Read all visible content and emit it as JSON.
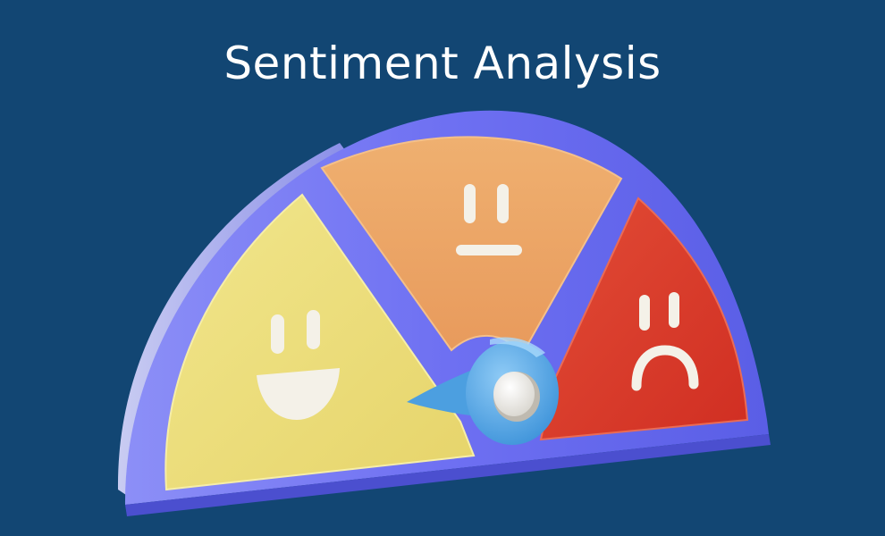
{
  "title": "Sentiment Analysis",
  "illustration": {
    "subject": "3D sentiment gauge meter",
    "segments": [
      {
        "mood": "happy",
        "face": "smiling-face-icon",
        "color": "#ECDF7E"
      },
      {
        "mood": "neutral",
        "face": "neutral-face-icon",
        "color": "#ECA766"
      },
      {
        "mood": "sad",
        "face": "sad-face-icon",
        "color": "#DC3B2A"
      }
    ],
    "rim_color": "#6F73F0",
    "needle_color": "#5BB0EE",
    "needle_pointing_at": "happy"
  }
}
